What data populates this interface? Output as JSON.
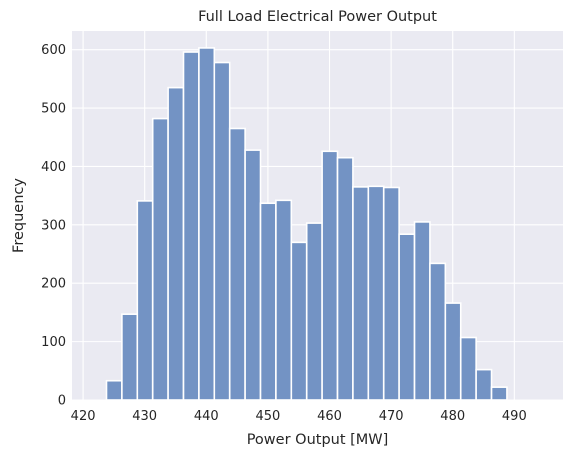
{
  "chart_data": {
    "type": "bar",
    "title": "Full Load Electrical Power Output",
    "xlabel": "Power Output [MW]",
    "ylabel": "Frequency",
    "xlim": [
      418.2,
      497.9
    ],
    "ylim": [
      0,
      632
    ],
    "xticks": [
      420,
      430,
      440,
      450,
      460,
      470,
      480,
      490
    ],
    "yticks": [
      0,
      100,
      200,
      300,
      400,
      500,
      600
    ],
    "grid": true,
    "bar_color": "#7393c4",
    "background": "#eaeaf2",
    "bins": [
      {
        "x0": 423.8,
        "x1": 426.3,
        "value": 33
      },
      {
        "x0": 426.3,
        "x1": 428.8,
        "value": 147
      },
      {
        "x0": 428.8,
        "x1": 431.3,
        "value": 341
      },
      {
        "x0": 431.3,
        "x1": 433.8,
        "value": 482
      },
      {
        "x0": 433.8,
        "x1": 436.3,
        "value": 535
      },
      {
        "x0": 436.3,
        "x1": 438.8,
        "value": 596
      },
      {
        "x0": 438.8,
        "x1": 441.3,
        "value": 603
      },
      {
        "x0": 441.3,
        "x1": 443.8,
        "value": 578
      },
      {
        "x0": 443.8,
        "x1": 446.3,
        "value": 465
      },
      {
        "x0": 446.3,
        "x1": 448.8,
        "value": 428
      },
      {
        "x0": 448.8,
        "x1": 451.3,
        "value": 337
      },
      {
        "x0": 451.3,
        "x1": 453.8,
        "value": 342
      },
      {
        "x0": 453.8,
        "x1": 456.3,
        "value": 270
      },
      {
        "x0": 456.3,
        "x1": 458.8,
        "value": 303
      },
      {
        "x0": 458.8,
        "x1": 461.3,
        "value": 426
      },
      {
        "x0": 461.3,
        "x1": 463.8,
        "value": 415
      },
      {
        "x0": 463.8,
        "x1": 466.3,
        "value": 365
      },
      {
        "x0": 466.3,
        "x1": 468.8,
        "value": 366
      },
      {
        "x0": 468.8,
        "x1": 471.3,
        "value": 364
      },
      {
        "x0": 471.3,
        "x1": 473.8,
        "value": 284
      },
      {
        "x0": 473.8,
        "x1": 476.3,
        "value": 305
      },
      {
        "x0": 476.3,
        "x1": 478.8,
        "value": 234
      },
      {
        "x0": 478.8,
        "x1": 481.3,
        "value": 166
      },
      {
        "x0": 481.3,
        "x1": 483.8,
        "value": 107
      },
      {
        "x0": 483.8,
        "x1": 486.3,
        "value": 52
      },
      {
        "x0": 486.3,
        "x1": 488.8,
        "value": 22
      }
    ]
  }
}
